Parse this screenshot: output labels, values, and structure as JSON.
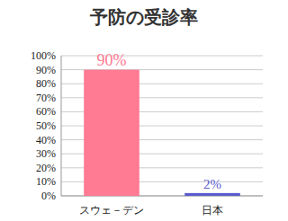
{
  "chart_data": {
    "type": "bar",
    "title": "予防の受診率",
    "categories": [
      "スウェ－デン",
      "日本"
    ],
    "values": [
      90,
      2
    ],
    "value_labels": [
      "90%",
      "2%"
    ],
    "colors": [
      "#ff7a93",
      "#5b5bcf"
    ],
    "ylim": [
      0,
      100
    ],
    "yticks": [
      {
        "value": 0,
        "label": "0%"
      },
      {
        "value": 10,
        "label": "10%"
      },
      {
        "value": 20,
        "label": "20%"
      },
      {
        "value": 30,
        "label": "30%"
      },
      {
        "value": 40,
        "label": "40%"
      },
      {
        "value": 50,
        "label": "50%"
      },
      {
        "value": 60,
        "label": "60%"
      },
      {
        "value": 70,
        "label": "70%"
      },
      {
        "value": 80,
        "label": "80%"
      },
      {
        "value": 90,
        "label": "90%"
      },
      {
        "value": 100,
        "label": "100%"
      }
    ],
    "grid": true,
    "data_labels": true
  }
}
